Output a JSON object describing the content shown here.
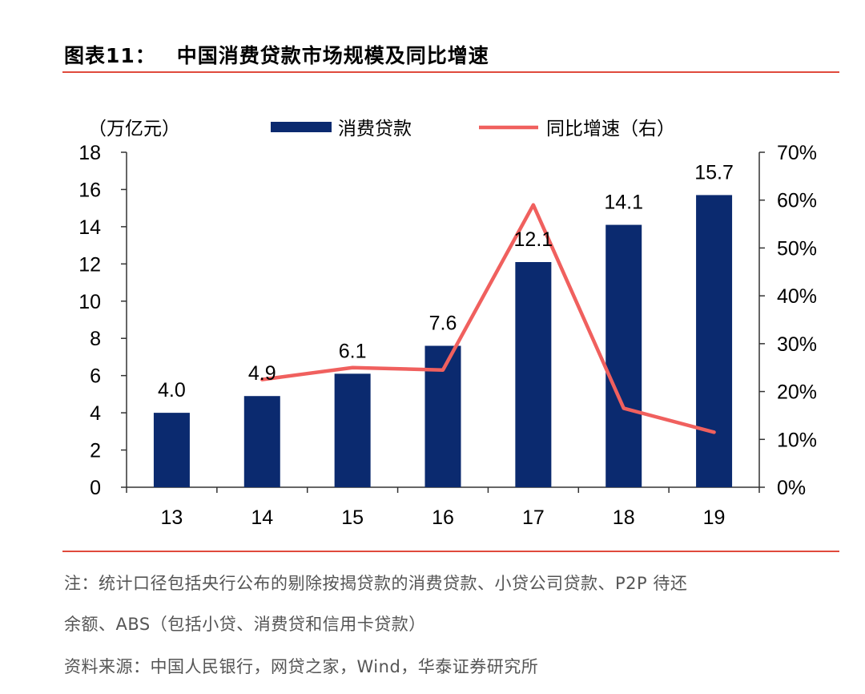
{
  "header": {
    "figure_number": "图表11：",
    "title": "中国消费贷款市场规模及同比增速"
  },
  "chart_data": {
    "type": "bar",
    "title": "中国消费贷款市场规模及同比增速",
    "categories": [
      "13",
      "14",
      "15",
      "16",
      "17",
      "18",
      "19"
    ],
    "y_left_unit": "（万亿元）",
    "ylim_left": [
      0,
      18
    ],
    "yticks_left": [
      "0",
      "2",
      "4",
      "6",
      "8",
      "10",
      "12",
      "14",
      "16",
      "18"
    ],
    "ylim_right": [
      0,
      0.7
    ],
    "yticks_right": [
      "0%",
      "10%",
      "20%",
      "30%",
      "40%",
      "50%",
      "60%",
      "70%"
    ],
    "series": [
      {
        "name": "消费贷款",
        "type": "bar",
        "axis": "left",
        "color": "#0b2a6f",
        "values": [
          4.0,
          4.9,
          6.1,
          7.6,
          12.1,
          14.1,
          15.7
        ],
        "labels": [
          "4.0",
          "4.9",
          "6.1",
          "7.6",
          "12.1",
          "14.1",
          "15.7"
        ]
      },
      {
        "name": "同比增速（右）",
        "type": "line",
        "axis": "right",
        "color": "#f0605e",
        "values": [
          null,
          0.225,
          0.25,
          0.245,
          0.59,
          0.165,
          0.115
        ]
      }
    ],
    "legend_position": "top"
  },
  "notes": {
    "line1": "注：统计口径包括央行公布的剔除按揭贷款的消费贷款、小贷公司贷款、P2P 待还",
    "line2": "余额、ABS（包括小贷、消费贷和信用卡贷款）",
    "source": "资料来源：中国人民银行，网贷之家，Wind，华泰证券研究所"
  }
}
